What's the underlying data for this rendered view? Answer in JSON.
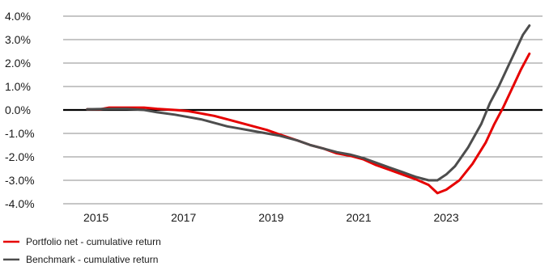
{
  "chart_data": {
    "type": "line",
    "title": "",
    "xlabel": "",
    "ylabel": "",
    "x_ticks": [
      "2015",
      "2017",
      "2019",
      "2021",
      "2023"
    ],
    "y_ticks": [
      "4.0%",
      "3.0%",
      "2.0%",
      "1.0%",
      "0.0%",
      "-1.0%",
      "-2.0%",
      "-3.0%",
      "-4.0%"
    ],
    "xlim": [
      2014.25,
      2025.2
    ],
    "ylim": [
      -4.0,
      4.0
    ],
    "grid": true,
    "legend_position": "bottom-left",
    "series": [
      {
        "name": "Portfolio net - cumulative return",
        "color": "#e60000",
        "points": [
          [
            2014.8,
            0.03
          ],
          [
            2015.1,
            0.03
          ],
          [
            2015.3,
            0.1
          ],
          [
            2015.7,
            0.1
          ],
          [
            2016.1,
            0.1
          ],
          [
            2016.4,
            0.05
          ],
          [
            2016.8,
            0.0
          ],
          [
            2017.1,
            -0.05
          ],
          [
            2017.4,
            -0.15
          ],
          [
            2017.7,
            -0.25
          ],
          [
            2018.0,
            -0.4
          ],
          [
            2018.3,
            -0.55
          ],
          [
            2018.6,
            -0.7
          ],
          [
            2018.9,
            -0.85
          ],
          [
            2019.2,
            -1.05
          ],
          [
            2019.6,
            -1.3
          ],
          [
            2019.9,
            -1.5
          ],
          [
            2020.2,
            -1.65
          ],
          [
            2020.5,
            -1.85
          ],
          [
            2020.8,
            -1.95
          ],
          [
            2021.1,
            -2.1
          ],
          [
            2021.4,
            -2.35
          ],
          [
            2021.7,
            -2.55
          ],
          [
            2022.0,
            -2.75
          ],
          [
            2022.3,
            -2.95
          ],
          [
            2022.6,
            -3.2
          ],
          [
            2022.8,
            -3.55
          ],
          [
            2023.0,
            -3.4
          ],
          [
            2023.3,
            -3.0
          ],
          [
            2023.6,
            -2.3
          ],
          [
            2023.9,
            -1.4
          ],
          [
            2024.1,
            -0.6
          ],
          [
            2024.3,
            0.1
          ],
          [
            2024.5,
            0.9
          ],
          [
            2024.7,
            1.7
          ],
          [
            2024.9,
            2.4
          ]
        ]
      },
      {
        "name": "Benchmark - cumulative return",
        "color": "#4d4d4d",
        "points": [
          [
            2014.8,
            0.03
          ],
          [
            2015.3,
            0.05
          ],
          [
            2015.7,
            0.05
          ],
          [
            2016.1,
            0.0
          ],
          [
            2016.4,
            -0.1
          ],
          [
            2016.8,
            -0.2
          ],
          [
            2017.1,
            -0.3
          ],
          [
            2017.4,
            -0.4
          ],
          [
            2017.7,
            -0.55
          ],
          [
            2018.0,
            -0.7
          ],
          [
            2018.3,
            -0.8
          ],
          [
            2018.6,
            -0.9
          ],
          [
            2018.9,
            -1.0
          ],
          [
            2019.2,
            -1.1
          ],
          [
            2019.6,
            -1.3
          ],
          [
            2019.9,
            -1.5
          ],
          [
            2020.2,
            -1.65
          ],
          [
            2020.5,
            -1.8
          ],
          [
            2020.8,
            -1.9
          ],
          [
            2021.1,
            -2.05
          ],
          [
            2021.4,
            -2.25
          ],
          [
            2021.7,
            -2.45
          ],
          [
            2022.0,
            -2.65
          ],
          [
            2022.3,
            -2.85
          ],
          [
            2022.6,
            -3.0
          ],
          [
            2022.8,
            -3.0
          ],
          [
            2023.0,
            -2.75
          ],
          [
            2023.2,
            -2.4
          ],
          [
            2023.5,
            -1.6
          ],
          [
            2023.8,
            -0.6
          ],
          [
            2024.0,
            0.3
          ],
          [
            2024.2,
            1.0
          ],
          [
            2024.4,
            1.8
          ],
          [
            2024.6,
            2.6
          ],
          [
            2024.75,
            3.2
          ],
          [
            2024.9,
            3.6
          ]
        ]
      }
    ]
  }
}
